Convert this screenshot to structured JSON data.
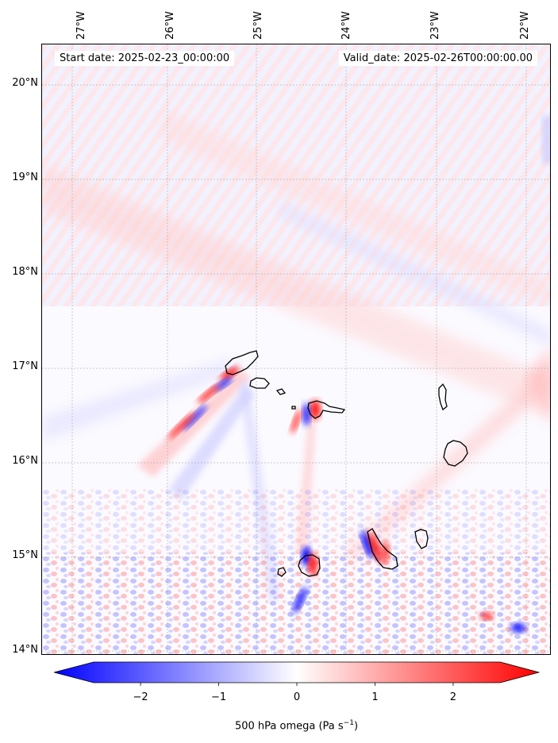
{
  "header": {
    "start_label": "Start date: 2025-02-23_00:00:00",
    "valid_label": "Valid_date: 2025-02-26T00:00:00.00"
  },
  "axes": {
    "lon_labels": [
      "27°W",
      "26°W",
      "25°W",
      "24°W",
      "23°W",
      "22°W"
    ],
    "lat_labels": [
      "20°N",
      "19°N",
      "18°N",
      "17°N",
      "16°N",
      "15°N",
      "14°N"
    ],
    "lon_range": [
      -27.45,
      -21.8
    ],
    "lat_range": [
      13.95,
      20.4
    ],
    "gridlines": true
  },
  "colorbar": {
    "label_prefix": "500 hPa omega (Pa s",
    "label_sup": "−1",
    "label_suffix": ")",
    "ticks": [
      "−2",
      "−1",
      "0",
      "1",
      "2"
    ],
    "tick_values": [
      -2,
      -1,
      0,
      1,
      2
    ],
    "range": [
      -2.6,
      2.6
    ],
    "colormap": "bwr",
    "low_color": "#0000ff",
    "mid_color": "#ffffff",
    "high_color": "#ff0000"
  },
  "map": {
    "field": "500 hPa omega",
    "coastline_color": "#000000",
    "islands": [
      "Santo Antão",
      "São Vicente",
      "Santa Luzia",
      "São Nicolau",
      "Sal",
      "Boa Vista",
      "Brava",
      "Fogo",
      "Santiago",
      "Maio"
    ]
  }
}
